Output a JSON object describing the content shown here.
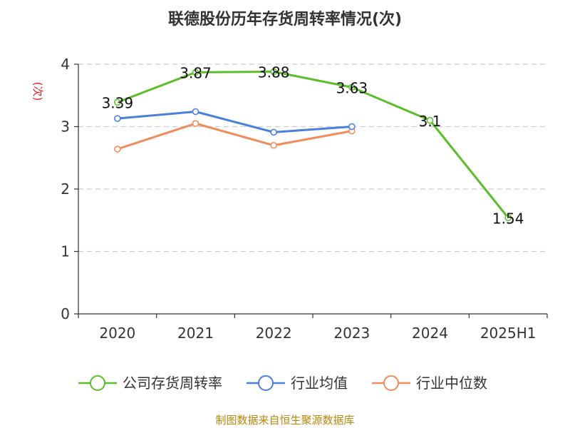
{
  "chart_data": {
    "type": "line",
    "title": "联德股份历年存货周转率情况(次)",
    "ylabel": "(次)",
    "xlabel": "",
    "categories": [
      "2020",
      "2021",
      "2022",
      "2023",
      "2024",
      "2025H1"
    ],
    "ylim": [
      0,
      4
    ],
    "yticks": [
      0,
      1,
      2,
      3,
      4
    ],
    "grid": true,
    "legend_position": "bottom",
    "series": [
      {
        "name": "公司存货周转率",
        "color": "#5cbf2a",
        "values": [
          3.39,
          3.87,
          3.88,
          3.63,
          3.1,
          1.54
        ],
        "labels": [
          "3.39",
          "3.87",
          "3.88",
          "3.63",
          "3.1",
          "1.54"
        ]
      },
      {
        "name": "行业均值",
        "color": "#4a7fdc",
        "values": [
          3.13,
          3.24,
          2.91,
          3.0,
          null,
          null
        ]
      },
      {
        "name": "行业中位数",
        "color": "#f28c5a",
        "values": [
          2.64,
          3.05,
          2.7,
          2.93,
          null,
          null
        ]
      }
    ]
  },
  "source": "制图数据来自恒生聚源数据库"
}
